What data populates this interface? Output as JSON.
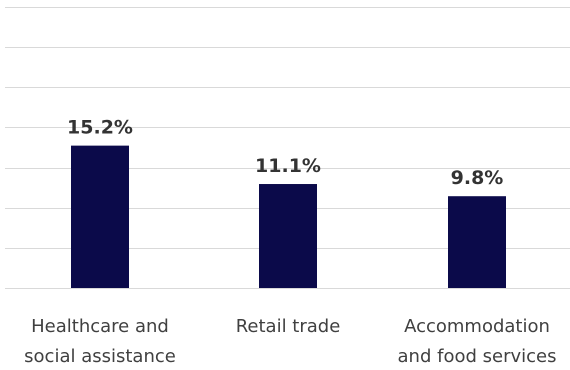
{
  "chart_data": {
    "type": "bar",
    "title": "",
    "xlabel": "",
    "ylabel": "",
    "categories": [
      [
        "Healthcare and",
        "social assistance"
      ],
      [
        "Retail trade"
      ],
      [
        "Accommodation",
        "and food services"
      ]
    ],
    "values": [
      15.2,
      11.1,
      9.8
    ],
    "data_labels": [
      "15.2%",
      "11.1%",
      "9.8%"
    ],
    "ylim": [
      0,
      30
    ],
    "grid": true,
    "legend": "none",
    "colors": {
      "bar": "#0b0a4a",
      "grid": "#d9d9d9",
      "label_text": "#333333",
      "category_text": "#404040"
    }
  }
}
